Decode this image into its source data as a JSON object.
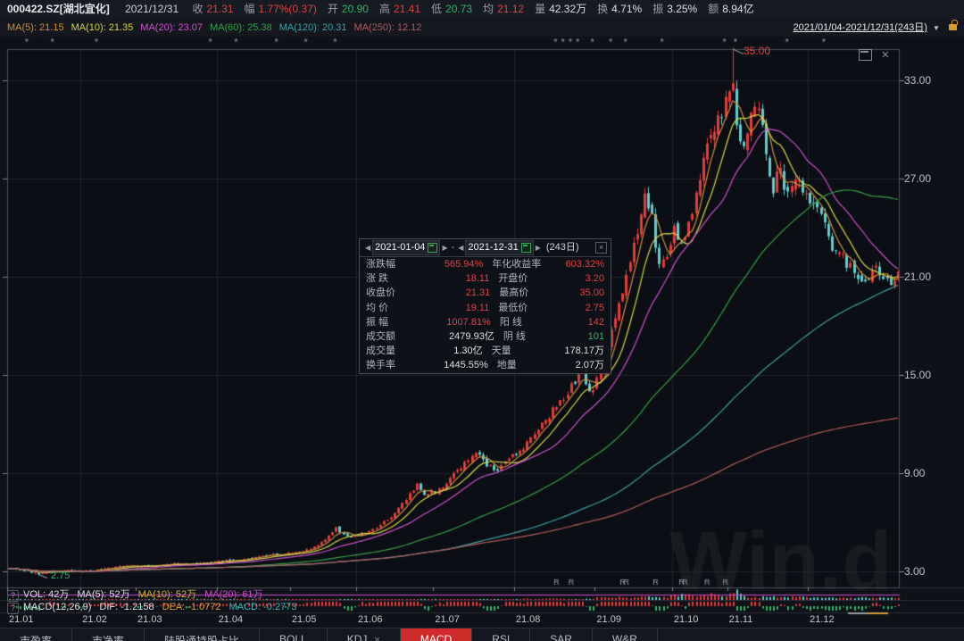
{
  "header": {
    "symbol": "000422.SZ[湖北宜化]",
    "date": "2021/12/31",
    "fields": [
      {
        "label": "收",
        "value": "21.31",
        "color": "red"
      },
      {
        "label": "幅",
        "value": "1.77%(0.37)",
        "color": "red"
      },
      {
        "label": "开",
        "value": "20.90",
        "color": "green"
      },
      {
        "label": "高",
        "value": "21.41",
        "color": "red"
      },
      {
        "label": "低",
        "value": "20.73",
        "color": "green"
      },
      {
        "label": "均",
        "value": "21.12",
        "color": "red"
      },
      {
        "label": "量",
        "value": "42.32万",
        "color": "white"
      },
      {
        "label": "换",
        "value": "4.71%",
        "color": "white"
      },
      {
        "label": "振",
        "value": "3.25%",
        "color": "white"
      },
      {
        "label": "额",
        "value": "8.94亿",
        "color": "white"
      }
    ]
  },
  "ma_bar": {
    "items": [
      {
        "text": "MA(5): 21.15",
        "color": "#d0913f"
      },
      {
        "text": "MA(10): 21.35",
        "color": "#d6d648"
      },
      {
        "text": "MA(20): 23.07",
        "color": "#cf4fcf"
      },
      {
        "text": "MA(60): 25.38",
        "color": "#35a047"
      },
      {
        "text": "MA(120): 20.31",
        "color": "#3f9fa8"
      },
      {
        "text": "MA(250): 12.12",
        "color": "#b55c5c"
      }
    ],
    "range_label": "2021/01/04-2021/12/31(243日)"
  },
  "stats_panel": {
    "start_date": "2021-01-04",
    "end_date": "2021-12-31",
    "separator": "-",
    "days_label": "(243日)",
    "rows": [
      {
        "l1": "涨跌幅",
        "v1": "565.94%",
        "c1": "red",
        "l2": "年化收益率",
        "v2": "603.32%",
        "c2": "red"
      },
      {
        "l1": "涨 跌",
        "v1": "18.11",
        "c1": "red",
        "l2": "开盘价",
        "v2": "3.20",
        "c2": "red"
      },
      {
        "l1": "收盘价",
        "v1": "21.31",
        "c1": "red",
        "l2": "最高价",
        "v2": "35.00",
        "c2": "red"
      },
      {
        "l1": "均 价",
        "v1": "19.11",
        "c1": "red",
        "l2": "最低价",
        "v2": "2.75",
        "c2": "red"
      },
      {
        "l1": "振 幅",
        "v1": "1007.81%",
        "c1": "red",
        "l2": "阳 线",
        "v2": "142",
        "c2": "red"
      },
      {
        "l1": "成交额",
        "v1": "2479.93亿",
        "c1": "white",
        "l2": "阴 线",
        "v2": "101",
        "c2": "green"
      },
      {
        "l1": "成交量",
        "v1": "1.30亿",
        "c1": "white",
        "l2": "天量",
        "v2": "178.17万",
        "c2": "white"
      },
      {
        "l1": "换手率",
        "v1": "1445.55%",
        "c1": "white",
        "l2": "地量",
        "v2": "2.07万",
        "c2": "white"
      }
    ]
  },
  "vol_bar": {
    "prefix": "VOL: 42万",
    "ma5": "MA(5): 52万",
    "ma10": "MA(10): 52万",
    "ma20": "MA(20): 61万"
  },
  "macd_bar": {
    "prefix": "MACD(12,26,9)",
    "dif": "DIF: -1.2158",
    "dea": "DEA: -1.0772",
    "macd": "MACD: -0.2773"
  },
  "tabs": [
    {
      "label": "市盈率",
      "active": false
    },
    {
      "label": "市净率",
      "active": false
    },
    {
      "label": "陆股通持股占比",
      "active": false
    },
    {
      "label": "BOLL",
      "active": false
    },
    {
      "label": "KDJ",
      "close": "×",
      "active": false
    },
    {
      "label": "MACD",
      "active": true
    },
    {
      "label": "RSI",
      "active": false
    },
    {
      "label": "SAR",
      "active": false
    },
    {
      "label": "W&R",
      "active": false
    }
  ],
  "watermark": "Win.d",
  "chart_data": {
    "type": "candlestick",
    "symbol": "000422.SZ",
    "period": "2021-01-04 ~ 2021-12-31",
    "days": 243,
    "up_color": "#e23b3b",
    "down_color": "#63cdcd",
    "y_axis": {
      "ticks": [
        33,
        27,
        21,
        15,
        9,
        3
      ],
      "tick_labels": [
        "33.00",
        "27.00",
        "21.00",
        "15.00",
        "9.00",
        "3.00"
      ]
    },
    "x_axis": {
      "ticks": [
        {
          "label": "21.01",
          "day": 0
        },
        {
          "label": "21.02",
          "day": 20
        },
        {
          "label": "21.03",
          "day": 35
        },
        {
          "label": "21.04",
          "day": 57
        },
        {
          "label": "21.05",
          "day": 77
        },
        {
          "label": "21.06",
          "day": 95
        },
        {
          "label": "21.07",
          "day": 116
        },
        {
          "label": "21.08",
          "day": 138
        },
        {
          "label": "21.09",
          "day": 160
        },
        {
          "label": "21.10",
          "day": 181
        },
        {
          "label": "21.11",
          "day": 196
        },
        {
          "label": "21.12",
          "day": 218
        }
      ]
    },
    "grid_month_days": [
      20,
      57,
      95,
      138,
      181,
      218
    ],
    "first_open": 3.2,
    "last_candle": {
      "open": 20.9,
      "high": 21.41,
      "low": 20.73,
      "close": 21.31
    },
    "close_anchors": [
      [
        0,
        3.22
      ],
      [
        3,
        3.1
      ],
      [
        6,
        2.95
      ],
      [
        8,
        2.82
      ],
      [
        11,
        3.0
      ],
      [
        15,
        3.05
      ],
      [
        20,
        2.98
      ],
      [
        25,
        3.1
      ],
      [
        30,
        3.28
      ],
      [
        34,
        3.35
      ],
      [
        40,
        3.32
      ],
      [
        45,
        3.45
      ],
      [
        50,
        3.42
      ],
      [
        57,
        3.6
      ],
      [
        62,
        3.72
      ],
      [
        68,
        3.9
      ],
      [
        73,
        4.05
      ],
      [
        77,
        4.1
      ],
      [
        82,
        4.35
      ],
      [
        86,
        4.9
      ],
      [
        89,
        5.6
      ],
      [
        92,
        5.1
      ],
      [
        95,
        5.2
      ],
      [
        100,
        5.6
      ],
      [
        104,
        6.4
      ],
      [
        108,
        7.3
      ],
      [
        111,
        8.3
      ],
      [
        113,
        7.7
      ],
      [
        116,
        7.9
      ],
      [
        120,
        8.6
      ],
      [
        124,
        9.6
      ],
      [
        127,
        10.4
      ],
      [
        130,
        9.4
      ],
      [
        133,
        9.2
      ],
      [
        136,
        9.8
      ],
      [
        138,
        10.2
      ],
      [
        141,
        10.8
      ],
      [
        144,
        11.6
      ],
      [
        147,
        12.5
      ],
      [
        150,
        13.4
      ],
      [
        153,
        14.3
      ],
      [
        156,
        15.2
      ],
      [
        158,
        14.0
      ],
      [
        160,
        14.6
      ],
      [
        163,
        16.5
      ],
      [
        166,
        19.5
      ],
      [
        169,
        22.0
      ],
      [
        171,
        24.0
      ],
      [
        173,
        26.5
      ],
      [
        175,
        24.5
      ],
      [
        177,
        21.8
      ],
      [
        179,
        22.5
      ],
      [
        181,
        23.8
      ],
      [
        183,
        22.8
      ],
      [
        185,
        24.5
      ],
      [
        187,
        26.0
      ],
      [
        189,
        28.0
      ],
      [
        191,
        29.5
      ],
      [
        193,
        30.5
      ],
      [
        195,
        31.5
      ],
      [
        197,
        33.0
      ],
      [
        198,
        30.0
      ],
      [
        200,
        28.8
      ],
      [
        202,
        30.8
      ],
      [
        204,
        31.0
      ],
      [
        206,
        28.5
      ],
      [
        208,
        26.5
      ],
      [
        210,
        27.5
      ],
      [
        212,
        26.0
      ],
      [
        214,
        26.8
      ],
      [
        216,
        26.2
      ],
      [
        218,
        25.8
      ],
      [
        220,
        25.0
      ],
      [
        222,
        24.0
      ],
      [
        224,
        23.0
      ],
      [
        227,
        22.2
      ],
      [
        230,
        21.2
      ],
      [
        232,
        20.4
      ],
      [
        234,
        21.2
      ],
      [
        236,
        21.6
      ],
      [
        238,
        21.0
      ],
      [
        240,
        20.7
      ],
      [
        242,
        21.31
      ]
    ],
    "extremes": {
      "high": {
        "day": 197,
        "price": 35.0,
        "label": "35.00"
      },
      "low": {
        "day": 8,
        "price": 2.75,
        "label": "2.75"
      }
    },
    "ma_lines": [
      {
        "n": 5,
        "color": "#d0913f"
      },
      {
        "n": 10,
        "color": "#d6d648"
      },
      {
        "n": 20,
        "color": "#cf4fcf"
      },
      {
        "n": 60,
        "color": "#35a047"
      },
      {
        "n": 120,
        "color": "#3f9fa8"
      },
      {
        "n": 250,
        "color": "#b55c5c"
      }
    ],
    "event_marker_days": [
      5,
      12,
      24,
      55,
      62,
      73,
      81,
      89,
      149,
      151,
      153,
      155,
      159,
      164,
      168,
      178,
      195,
      198,
      212,
      222
    ],
    "r_marker_days": [
      149,
      153,
      167,
      168,
      176,
      183,
      184,
      190,
      195
    ],
    "volume_max_label": "178.17万"
  }
}
